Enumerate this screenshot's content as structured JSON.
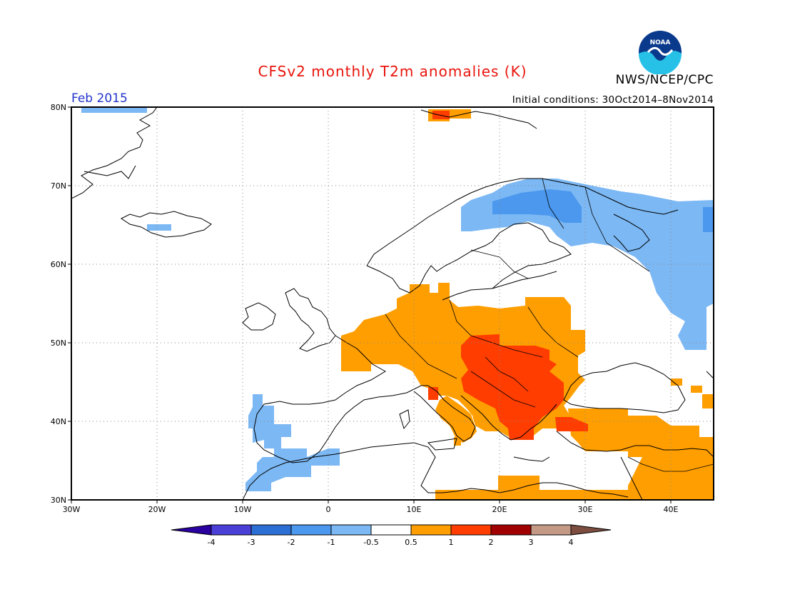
{
  "header": {
    "title": "CFSv2 monthly T2m anomalies (K)",
    "agency": "NWS/NCEP/CPC",
    "month": "Feb 2015",
    "initial_conditions": "Initial conditions: 30Oct2014–8Nov2014",
    "logo_text": "NOAA"
  },
  "map": {
    "extent": {
      "lon": [
        -30,
        45
      ],
      "lat": [
        30,
        80
      ]
    },
    "lat_ticks": [
      "30N",
      "40N",
      "50N",
      "60N",
      "70N",
      "80N"
    ],
    "lon_ticks": [
      "30W",
      "20W",
      "10W",
      "0",
      "10E",
      "20E",
      "30E",
      "40E"
    ],
    "grid": "dotted",
    "anomaly_regions": [
      {
        "name": "Greenland coast",
        "level": "-1 to -0.5"
      },
      {
        "name": "Iceland",
        "level": "-1 to -0.5"
      },
      {
        "name": "Svalbard",
        "level": "1 to 2"
      },
      {
        "name": "Northern Scandinavia / Russia",
        "level": "-2 to -0.5"
      },
      {
        "name": "Iberia west & Morocco",
        "level": "-1 to -0.5"
      },
      {
        "name": "Central Europe",
        "level": "0.5 to 1"
      },
      {
        "name": "Balkans / Hungary",
        "level": "1 to 2"
      },
      {
        "name": "Turkey / Middle East",
        "level": "0.5 to 1"
      }
    ]
  },
  "colorbar": {
    "labels": [
      "-4",
      "-3",
      "-2",
      "-1",
      "-0.5",
      "0.5",
      "1",
      "2",
      "3",
      "4"
    ],
    "colors": [
      "#2a00a0",
      "#4a40d8",
      "#2c6fd4",
      "#4b98ee",
      "#7cb8f4",
      "#ffffff",
      "#ff9e00",
      "#ff3d00",
      "#a00000",
      "#c49a86",
      "#7d4e40"
    ]
  }
}
